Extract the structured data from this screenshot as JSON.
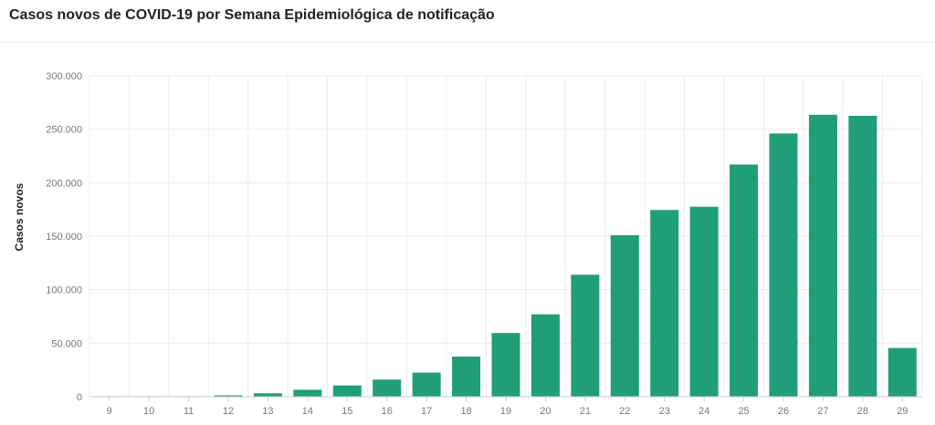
{
  "title": "Casos novos de COVID-19 por Semana Epidemiológica de notificação",
  "colors": {
    "bar": "#1f9e78",
    "grid": "#ececec",
    "axis": "#c8ced4",
    "tick_text": "#6e7a85"
  },
  "chart_data": {
    "type": "bar",
    "title": "Casos novos de COVID-19 por Semana Epidemiológica de notificação",
    "xlabel": "",
    "ylabel": "Casos novos",
    "ylim": [
      0,
      300000
    ],
    "yticks": [
      0,
      50000,
      100000,
      150000,
      200000,
      250000,
      300000
    ],
    "ytick_labels": [
      "0",
      "50.000",
      "100.000",
      "150.000",
      "200.000",
      "250.000",
      "300.000"
    ],
    "grid": true,
    "categories": [
      "9",
      "10",
      "11",
      "12",
      "13",
      "14",
      "15",
      "16",
      "17",
      "18",
      "19",
      "20",
      "21",
      "22",
      "23",
      "24",
      "25",
      "26",
      "27",
      "28",
      "29"
    ],
    "values": [
      2,
      20,
      200,
      1300,
      3200,
      6500,
      10500,
      16000,
      22500,
      37500,
      59500,
      77000,
      114000,
      151000,
      174500,
      177500,
      217000,
      246000,
      263500,
      262500,
      45500
    ]
  }
}
